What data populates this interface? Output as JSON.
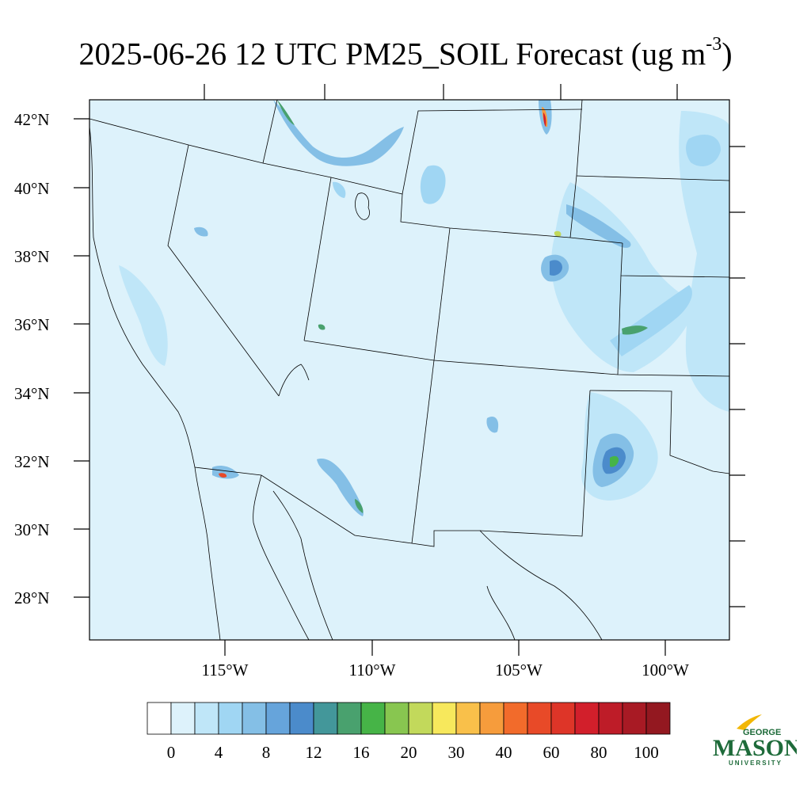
{
  "title": {
    "main": "2025-06-26 12 UTC PM25_SOIL Forecast (ug m",
    "exponent": "-3",
    "close": ")"
  },
  "map": {
    "projection": "lambert-conformal",
    "latitude_labels": [
      "42°N",
      "40°N",
      "38°N",
      "36°N",
      "34°N",
      "32°N",
      "30°N",
      "28°N"
    ],
    "longitude_labels": [
      "115°W",
      "110°W",
      "105°W",
      "100°W"
    ],
    "background_fill": "#ddf2fb",
    "boundary_color": "#000000"
  },
  "colorbar": {
    "labels": [
      "0",
      "4",
      "8",
      "12",
      "16",
      "20",
      "30",
      "40",
      "60",
      "80",
      "100"
    ],
    "colors": [
      "#ffffff",
      "#ddf2fb",
      "#bfe6f8",
      "#a0d6f3",
      "#84bfe6",
      "#66a4db",
      "#4b8bcb",
      "#43979a",
      "#49a16e",
      "#46b447",
      "#88c650",
      "#c2d95b",
      "#f7e85c",
      "#f9c04a",
      "#f69c3c",
      "#f26b2b",
      "#e84a28",
      "#de3528",
      "#d21f2b",
      "#be1c28",
      "#a81a24",
      "#931820"
    ]
  },
  "logo": {
    "line1": "GEORGE",
    "line2": "MASON",
    "line3": "UNIVERSITY",
    "colors": {
      "green": "#1e6b3a",
      "gold": "#f2b705"
    }
  }
}
